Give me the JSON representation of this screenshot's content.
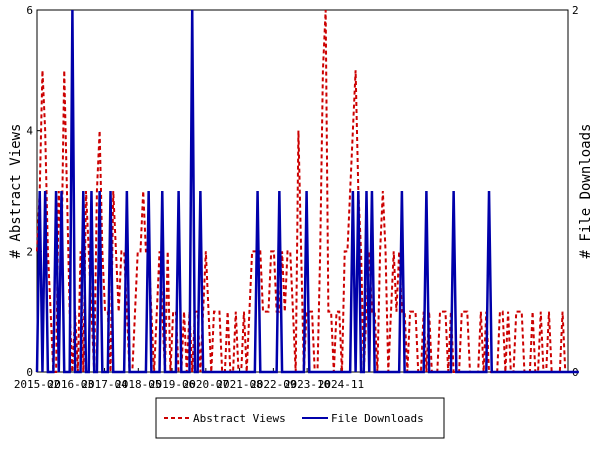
{
  "chart_data": {
    "type": "line",
    "x_tick_labels": [
      "2015-02",
      "2016-03",
      "2017-04",
      "2018-05",
      "2019-06",
      "2020-07",
      "2021-08",
      "2022-09",
      "2023-10",
      "2024-11"
    ],
    "y_left": {
      "label": "# Abstract Views",
      "ticks": [
        0,
        2,
        4,
        6
      ],
      "range": [
        0,
        6
      ]
    },
    "y_right": {
      "label": "# File Downloads",
      "ticks": [
        0,
        2
      ],
      "range": [
        0,
        2
      ]
    },
    "series": [
      {
        "name": "Abstract Views",
        "axis": "left",
        "color": "#cc0000",
        "style": "dashed",
        "values": [
          2,
          3,
          5,
          4,
          2,
          1,
          0,
          0,
          3,
          2,
          5,
          3,
          1,
          0,
          1,
          0,
          2,
          0,
          3,
          2,
          1,
          0,
          3,
          4,
          2,
          1,
          1,
          0,
          3,
          2,
          1,
          2,
          2,
          1,
          0,
          0,
          1,
          2,
          2,
          3,
          2,
          2,
          1,
          0,
          1,
          2,
          1,
          0,
          2,
          0,
          1,
          1,
          0,
          0,
          1,
          0,
          1,
          0,
          1,
          1,
          0,
          1,
          2,
          1,
          0,
          1,
          1,
          1,
          0,
          0,
          1,
          0,
          0,
          1,
          0,
          0,
          1,
          0,
          1,
          2,
          2,
          2,
          2,
          1,
          1,
          1,
          2,
          2,
          1,
          1,
          2,
          1,
          2,
          2,
          1,
          0,
          4,
          2,
          0,
          1,
          1,
          1,
          0,
          0,
          2,
          5,
          6,
          1,
          1,
          0,
          1,
          1,
          0,
          2,
          2,
          3,
          4,
          5,
          3,
          2,
          0,
          1,
          2,
          1,
          1,
          0,
          2,
          3,
          2,
          0,
          1,
          2,
          1,
          2,
          1,
          1,
          0,
          1,
          1,
          1,
          0,
          0,
          1,
          0,
          1,
          0,
          0,
          0,
          1,
          1,
          1,
          0,
          1,
          0,
          0,
          0,
          1,
          1,
          1,
          0,
          0,
          0,
          0,
          1,
          0,
          1,
          0,
          0,
          0,
          0,
          1,
          1,
          0,
          1,
          0,
          0,
          1,
          1,
          1,
          0,
          0,
          0,
          1,
          0,
          0,
          1,
          0,
          0,
          1,
          0,
          0,
          0,
          0,
          1,
          0,
          0
        ]
      },
      {
        "name": "File Downloads",
        "axis": "right",
        "color": "#0000aa",
        "style": "solid",
        "values": [
          0,
          1,
          0,
          1,
          0,
          0,
          0,
          1,
          0,
          1,
          0,
          0,
          0,
          2,
          0,
          0,
          0,
          1,
          0,
          0,
          1,
          0,
          0,
          1,
          0,
          0,
          0,
          1,
          0,
          0,
          0,
          0,
          0,
          1,
          0,
          0,
          0,
          0,
          0,
          0,
          0,
          1,
          0,
          0,
          0,
          0,
          1,
          0,
          0,
          0,
          0,
          0,
          1,
          0,
          0,
          0,
          0,
          2,
          0,
          0,
          1,
          0,
          0,
          0,
          0,
          0,
          0,
          0,
          0,
          0,
          0,
          0,
          0,
          0,
          0,
          0,
          0,
          0,
          0,
          0,
          0,
          1,
          0,
          0,
          0,
          0,
          0,
          0,
          0,
          1,
          0,
          0,
          0,
          0,
          0,
          0,
          0,
          0,
          0,
          1,
          0,
          0,
          0,
          0,
          0,
          0,
          0,
          0,
          0,
          0,
          0,
          0,
          0,
          0,
          0,
          0,
          1,
          0,
          1,
          0,
          0,
          1,
          0,
          1,
          0,
          0,
          0,
          0,
          0,
          0,
          0,
          0,
          0,
          0,
          1,
          0,
          0,
          0,
          0,
          0,
          0,
          0,
          0,
          1,
          0,
          0,
          0,
          0,
          0,
          0,
          0,
          0,
          0,
          1,
          0,
          0,
          0,
          0,
          0,
          0,
          0,
          0,
          0,
          0,
          0,
          0,
          1,
          0,
          0,
          0,
          0,
          0,
          0,
          0,
          0,
          0,
          0,
          0,
          0,
          0,
          0,
          0,
          0,
          0,
          0,
          0,
          0,
          0,
          0,
          0,
          0,
          0,
          0,
          0,
          0,
          0,
          0,
          0,
          0,
          0
        ]
      }
    ],
    "legend_position": "bottom-center",
    "grid": false
  }
}
